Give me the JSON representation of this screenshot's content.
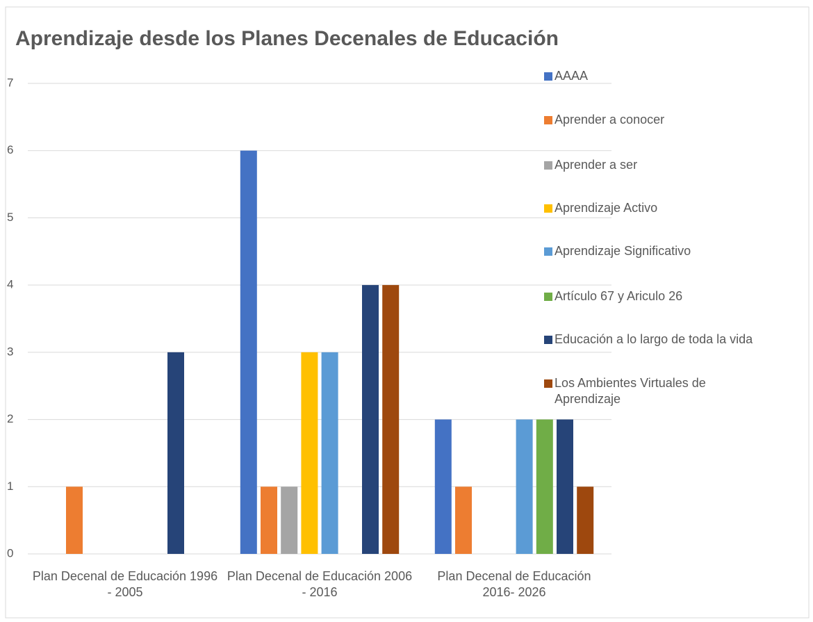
{
  "chart_data": {
    "type": "bar",
    "title": "Aprendizaje desde los Planes Decenales de Educación",
    "categories": [
      "Plan Decenal de Educación 1996 - 2005",
      "Plan Decenal de Educación 2006 - 2016",
      "Plan Decenal de Educación 2016- 2026"
    ],
    "series": [
      {
        "name": "AAAA",
        "color": "#4472c4",
        "values": [
          0,
          6,
          2
        ]
      },
      {
        "name": "Aprender a conocer",
        "color": "#ed7d31",
        "values": [
          1,
          1,
          1
        ]
      },
      {
        "name": "Aprender a ser",
        "color": "#a5a5a5",
        "values": [
          0,
          1,
          0
        ]
      },
      {
        "name": "Aprendizaje Activo",
        "color": "#ffc000",
        "values": [
          0,
          3,
          0
        ]
      },
      {
        "name": "Aprendizaje Significativo",
        "color": "#5b9bd5",
        "values": [
          0,
          3,
          2
        ]
      },
      {
        "name": "Artículo 67 y Ariculo 26",
        "color": "#70ad47",
        "values": [
          0,
          0,
          2
        ]
      },
      {
        "name": "Educación a lo largo de toda la vida",
        "color": "#264478",
        "values": [
          3,
          4,
          2
        ]
      },
      {
        "name": "Los Ambientes Virtuales de Aprendizaje",
        "color": "#9e480e",
        "values": [
          0,
          4,
          1
        ]
      }
    ],
    "ylim": [
      0,
      7
    ],
    "yticks": [
      0,
      1,
      2,
      3,
      4,
      5,
      6,
      7
    ],
    "grid": true,
    "legend": "right"
  }
}
